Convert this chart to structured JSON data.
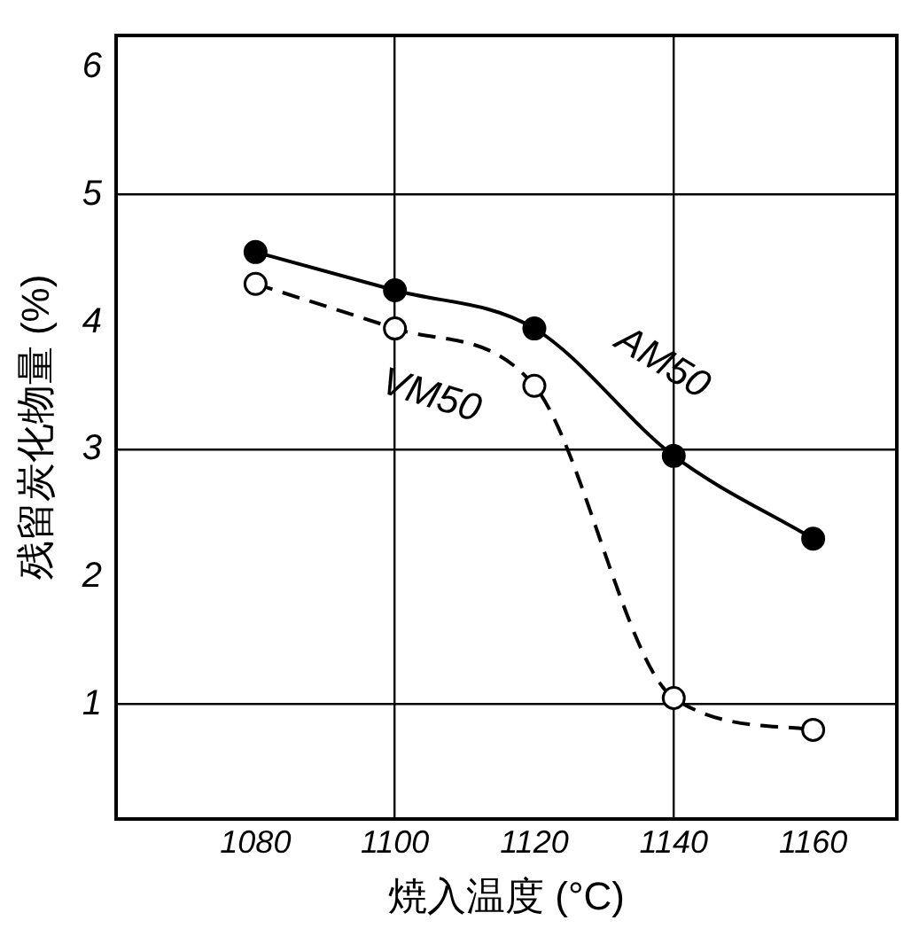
{
  "chart_data": {
    "type": "line",
    "xlabel": "焼入温度 (°C)",
    "ylabel": "残留炭化物量 (%)",
    "xlim": [
      1060,
      1172
    ],
    "xticks": [
      1080,
      1100,
      1120,
      1140,
      1160
    ],
    "ylim": [
      0.1,
      6.25
    ],
    "yticks": [
      1,
      2,
      3,
      4,
      5,
      6
    ],
    "grid": true,
    "legend": false,
    "marker": "circle",
    "series": [
      {
        "name": "AM50",
        "color": "#000000",
        "line_style": "solid",
        "x": [
          1080,
          1100,
          1120,
          1140,
          1160
        ],
        "values": [
          4.55,
          4.25,
          3.95,
          2.95,
          2.3
        ]
      },
      {
        "name": "VM50",
        "color": "#000000",
        "line_style": "dashed",
        "x": [
          1080,
          1100,
          1120,
          1140,
          1160
        ],
        "values": [
          4.3,
          3.95,
          3.5,
          1.05,
          0.8
        ]
      }
    ]
  }
}
